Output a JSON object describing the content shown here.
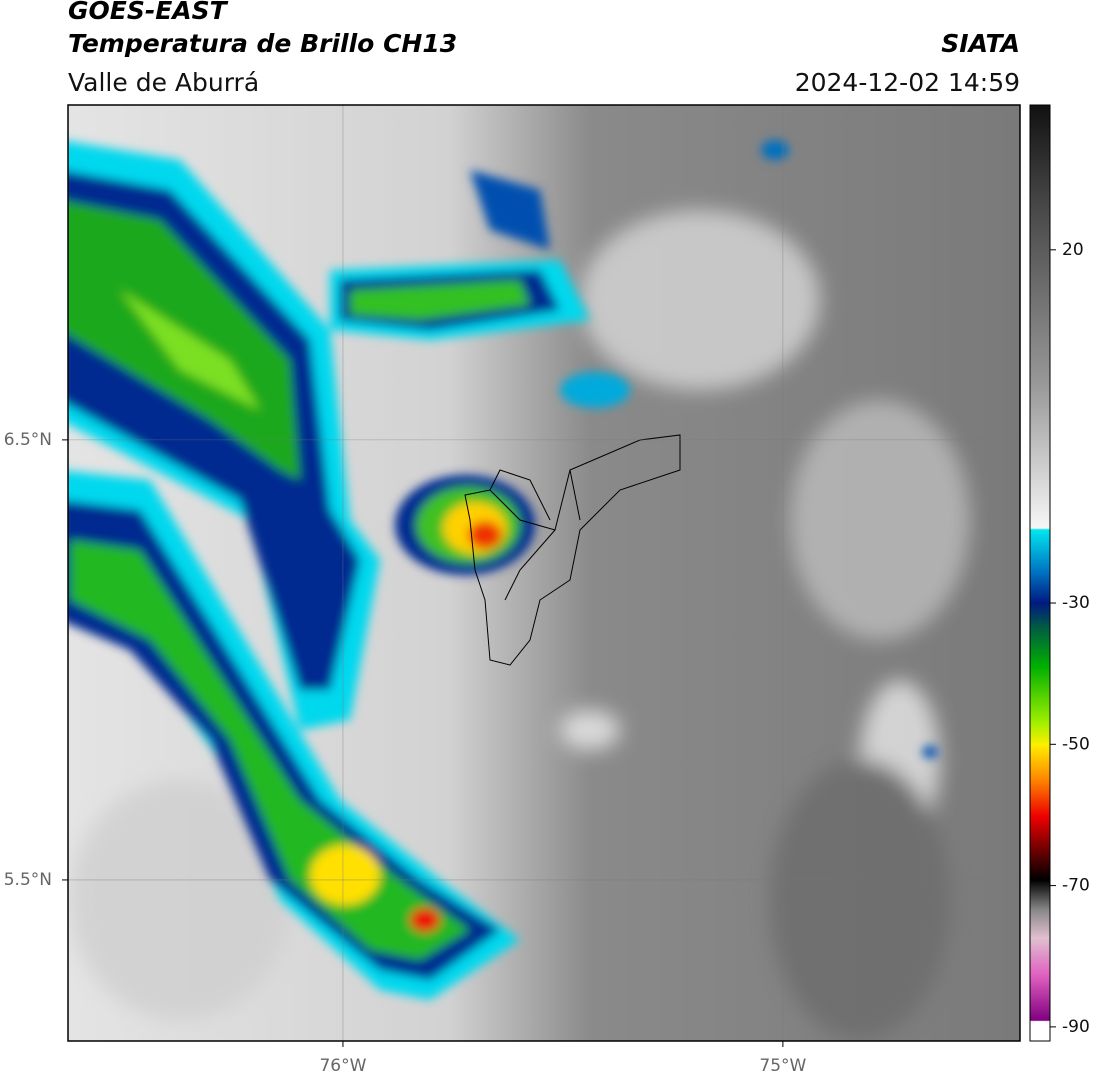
{
  "header": {
    "title": "GOES-EAST",
    "subtitle": "Temperatura de Brillo CH13",
    "region": "Valle de Aburrá",
    "source": "SIATA",
    "timestamp": "2024-12-02 14:59"
  },
  "map": {
    "xlim": [
      -76.625,
      -74.461
    ],
    "ylim": [
      5.134,
      7.261
    ],
    "xticks": [
      {
        "value": -76,
        "label": "76°W"
      },
      {
        "value": -75,
        "label": "75°W"
      }
    ],
    "yticks": [
      {
        "value": 6.5,
        "label": "6.5°N"
      },
      {
        "value": 5.5,
        "label": "5.5°N"
      }
    ],
    "colorbar": {
      "lim": [
        -92,
        40.5
      ],
      "ticks": [
        20,
        -30,
        -50,
        -70,
        -90
      ]
    }
  }
}
